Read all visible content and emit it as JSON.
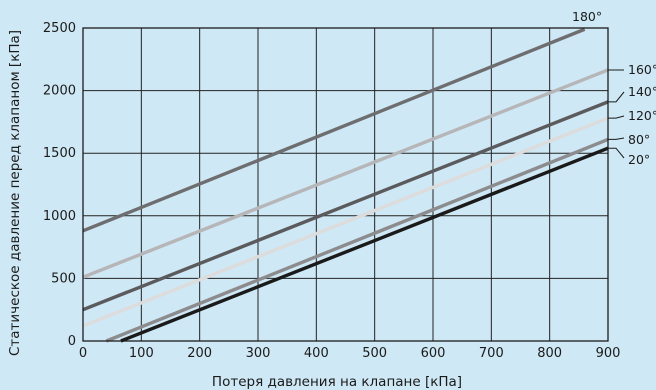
{
  "chart_data": {
    "type": "line",
    "title": "",
    "xlabel": "Потеря давления на клапане [кПа]",
    "ylabel": "Статическое давление перед клапаном [кПа]",
    "xlim": [
      0,
      900
    ],
    "ylim": [
      0,
      2500
    ],
    "xticks": [
      0,
      100,
      200,
      300,
      400,
      500,
      600,
      700,
      800,
      900
    ],
    "yticks": [
      0,
      500,
      1000,
      1500,
      2000,
      2500
    ],
    "xtick_labels": [
      "0",
      "100",
      "200",
      "300",
      "400",
      "500",
      "600",
      "700",
      "800",
      "900"
    ],
    "ytick_labels": [
      "0",
      "500",
      "1000",
      "1500",
      "2000",
      "2500"
    ],
    "grid": true,
    "legend": "none",
    "series": [
      {
        "name": "180°",
        "color": "#6e6e70",
        "x": [
          0,
          860
        ],
        "y": [
          880,
          2490
        ]
      },
      {
        "name": "160°",
        "color": "#b6b6b8",
        "x": [
          0,
          900
        ],
        "y": [
          510,
          2165
        ]
      },
      {
        "name": "140°",
        "color": "#5b5b5d",
        "x": [
          0,
          900
        ],
        "y": [
          250,
          1910
        ]
      },
      {
        "name": "120°",
        "color": "#dcdcdc",
        "x": [
          0,
          900
        ],
        "y": [
          120,
          1780
        ]
      },
      {
        "name": "80°",
        "color": "#8c8c8e",
        "x": [
          40,
          900
        ],
        "y": [
          0,
          1610
        ]
      },
      {
        "name": "20°",
        "color": "#1a1a1a",
        "x": [
          65,
          900
        ],
        "y": [
          0,
          1540
        ]
      }
    ]
  }
}
